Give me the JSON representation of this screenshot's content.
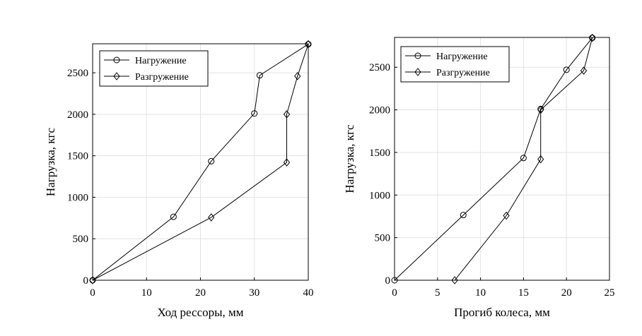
{
  "chart_data": [
    {
      "type": "line",
      "title": "",
      "xlabel": "Ход рессоры, мм",
      "ylabel": "Нагрузка, кгс",
      "xlim": [
        0,
        40
      ],
      "ylim": [
        0,
        2850
      ],
      "xticks": [
        0,
        10,
        20,
        30,
        40
      ],
      "yticks": [
        0,
        500,
        1000,
        1500,
        2000,
        2500
      ],
      "grid": true,
      "legend_position": "top-left",
      "series": [
        {
          "name": "Нагружение",
          "marker": "circle",
          "x": [
            0,
            15,
            22,
            30,
            31,
            40
          ],
          "y": [
            0,
            765,
            1435,
            2010,
            2470,
            2845
          ]
        },
        {
          "name": "Разгружение",
          "marker": "diamond",
          "x": [
            0,
            22,
            36,
            36,
            38,
            40
          ],
          "y": [
            0,
            758,
            1420,
            2000,
            2460,
            2845
          ]
        }
      ]
    },
    {
      "type": "line",
      "title": "",
      "xlabel": "Прогиб колеса, мм",
      "ylabel": "Нагрузка, кгс",
      "xlim": [
        0,
        25
      ],
      "ylim": [
        0,
        2850
      ],
      "xticks": [
        0,
        5,
        10,
        15,
        20,
        25
      ],
      "yticks": [
        0,
        500,
        1000,
        1500,
        2000,
        2500
      ],
      "grid": true,
      "legend_position": "top-left",
      "series": [
        {
          "name": "Нагружение",
          "marker": "circle",
          "x": [
            0,
            8,
            15,
            17,
            20,
            23
          ],
          "y": [
            0,
            765,
            1435,
            2010,
            2470,
            2845
          ]
        },
        {
          "name": "Разгружение",
          "marker": "diamond",
          "x": [
            7,
            13,
            17,
            17,
            22,
            23
          ],
          "y": [
            0,
            758,
            1420,
            2000,
            2460,
            2845
          ]
        }
      ]
    }
  ]
}
